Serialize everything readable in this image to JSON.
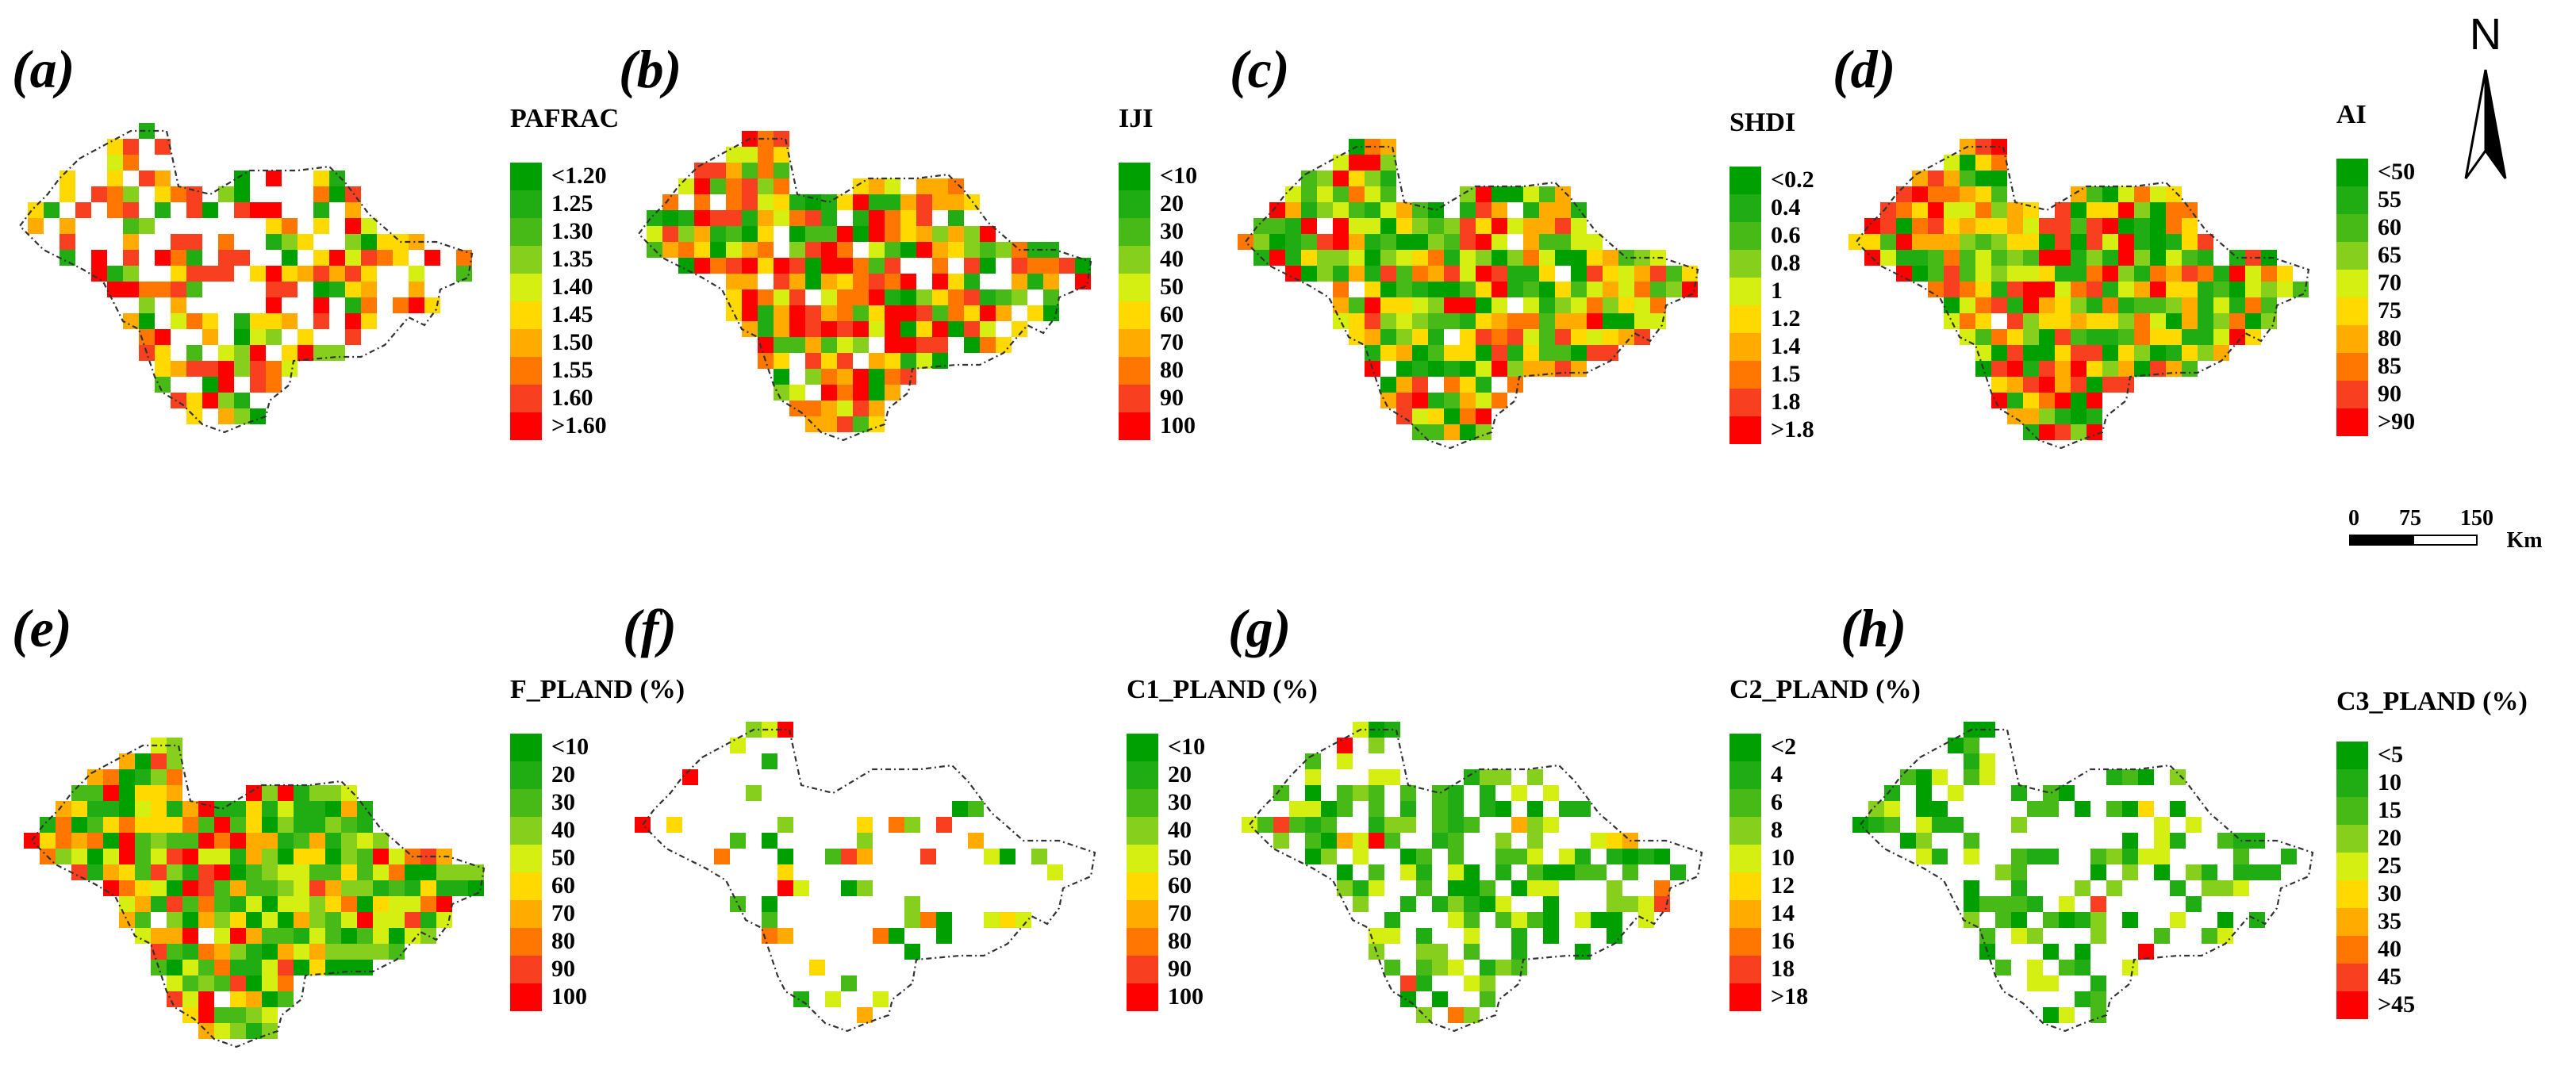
{
  "figure": {
    "panels": [
      {
        "id": "a",
        "label": "(a)",
        "legend_title": "PAFRAC",
        "classes": [
          "<1.20",
          "1.25",
          "1.30",
          "1.35",
          "1.40",
          "1.45",
          "1.50",
          "1.55",
          "1.60",
          ">1.60"
        ],
        "fill_density": 0.58,
        "warm_bias": 0.72,
        "west_bias": 0.0
      },
      {
        "id": "b",
        "label": "(b)",
        "legend_title": "IJI",
        "classes": [
          "<10",
          "20",
          "30",
          "40",
          "50",
          "60",
          "70",
          "80",
          "90",
          "100"
        ],
        "fill_density": 0.9,
        "warm_bias": 0.66,
        "west_bias": 0.0
      },
      {
        "id": "c",
        "label": "(c)",
        "legend_title": "SHDI",
        "classes": [
          "<0.2",
          "0.4",
          "0.6",
          "0.8",
          "1",
          "1.2",
          "1.4",
          "1.5",
          "1.8",
          ">1.8"
        ],
        "fill_density": 0.97,
        "warm_bias": 0.42,
        "west_bias": -0.25
      },
      {
        "id": "d",
        "label": "(d)",
        "legend_title": "AI",
        "classes": [
          "<50",
          "55",
          "60",
          "65",
          "70",
          "75",
          "80",
          "85",
          "90",
          ">90"
        ],
        "fill_density": 0.97,
        "warm_bias": 0.5,
        "west_bias": 0.35
      },
      {
        "id": "e",
        "label": "(e)",
        "legend_title": "F_PLAND (%)",
        "classes": [
          "<10",
          "20",
          "30",
          "40",
          "50",
          "60",
          "70",
          "80",
          "90",
          "100"
        ],
        "fill_density": 0.97,
        "warm_bias": 0.4,
        "west_bias": 0.65
      },
      {
        "id": "f",
        "label": "(f)",
        "legend_title": "C1_PLAND (%)",
        "classes": [
          "<10",
          "20",
          "30",
          "40",
          "50",
          "60",
          "70",
          "80",
          "90",
          "100"
        ],
        "fill_density": 0.17,
        "warm_bias": 0.45,
        "west_bias": -0.1
      },
      {
        "id": "g",
        "label": "(g)",
        "legend_title": "C2_PLAND (%)",
        "classes": [
          "<2",
          "4",
          "6",
          "8",
          "10",
          "12",
          "14",
          "16",
          "18",
          ">18"
        ],
        "fill_density": 0.55,
        "warm_bias": 0.1,
        "west_bias": 0.0
      },
      {
        "id": "h",
        "label": "(h)",
        "legend_title": "C3_PLAND (%)",
        "classes": [
          "<5",
          "10",
          "15",
          "20",
          "25",
          "30",
          "35",
          "40",
          "45",
          ">45"
        ],
        "fill_density": 0.42,
        "warm_bias": 0.05,
        "west_bias": -0.3
      }
    ],
    "class_colors": [
      "#00a000",
      "#20ad13",
      "#48ba17",
      "#86cf1c",
      "#d6ef12",
      "#ffd900",
      "#ffab00",
      "#ff7700",
      "#f84020",
      "#ff0000"
    ],
    "north_arrow": {
      "letter": "N"
    },
    "scale_bar": {
      "ticks": [
        "0",
        "75",
        "150"
      ],
      "unit": "Km"
    }
  }
}
